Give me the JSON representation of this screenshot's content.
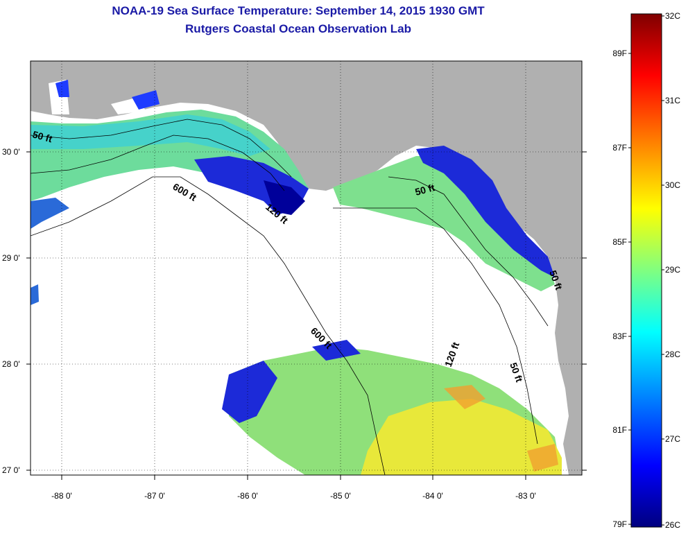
{
  "header": {
    "title": "NOAA-19 Sea Surface Temperature:  September 14, 2015 1930 GMT",
    "subtitle": "Rutgers Coastal Ocean Observation Lab"
  },
  "map": {
    "lon_labels": [
      "-88 0'",
      "-87 0'",
      "-86 0'",
      "-85 0'",
      "-84 0'",
      "-83 0'"
    ],
    "lat_labels": [
      "30 0'",
      "29 0'",
      "28 0'",
      "27 0'"
    ],
    "contour_labels": [
      "50 ft",
      "600 ft",
      "120 ft",
      "50 ft",
      "600 ft",
      "120 ft",
      "50 ft",
      "50 ft"
    ],
    "colors": {
      "land": "#b0b0b0",
      "no_data": "#ffffff"
    }
  },
  "colorbar": {
    "celsius_labels": [
      "32C",
      "31C",
      "30C",
      "29C",
      "28C",
      "27C",
      "26C"
    ],
    "fahrenheit_labels": [
      "89F",
      "87F",
      "85F",
      "83F",
      "81F",
      "79F"
    ],
    "gradient_colors": [
      "#7f0000",
      "#ff0000",
      "#ff8000",
      "#ffff00",
      "#80ff80",
      "#00ffff",
      "#0080ff",
      "#0000ff",
      "#00007f"
    ]
  }
}
